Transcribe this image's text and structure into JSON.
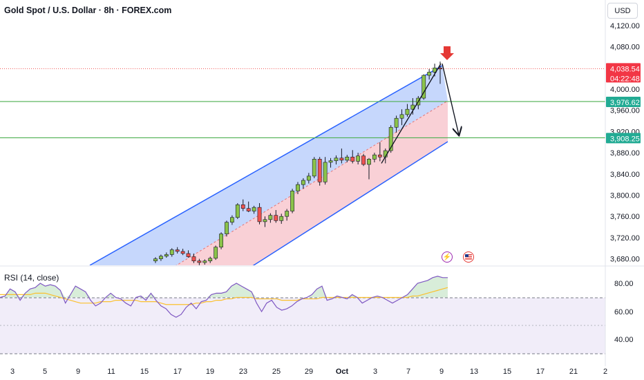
{
  "header": {
    "title": "Gold Spot / U.S. Dollar · 8h · FOREX.com",
    "currency": "USD"
  },
  "rsi": {
    "label": "RSI (14, close)",
    "ticks": [
      "80.00",
      "60.00",
      "40.00"
    ]
  },
  "price_axis": {
    "ticks": [
      "4,120.00",
      "4,080.00",
      "4,000.00",
      "3,960.00",
      "3,920.00",
      "3,880.00",
      "3,840.00",
      "3,800.00",
      "3,760.00",
      "3,720.00",
      "3,680.00"
    ]
  },
  "badges": {
    "last_price": "4,038.54",
    "countdown": "04:22:48",
    "level_upper": "3,976.62",
    "level_lower": "3,908.25"
  },
  "time_axis": {
    "labels": [
      "3",
      "5",
      "9",
      "11",
      "15",
      "17",
      "19",
      "23",
      "25",
      "29",
      "Oct",
      "3",
      "7",
      "9",
      "13",
      "15",
      "17",
      "21",
      "2"
    ]
  },
  "icons": {
    "lightning": "lightning-icon",
    "flag": "us-flag-icon"
  },
  "colors": {
    "bull_candle": "#8bc34a",
    "bear_candle": "#ef5350",
    "channel_line": "#2962ff",
    "channel_upper_fill": "#bcd0fb",
    "channel_lower_fill": "#f8c8cf",
    "level_line": "#4caf50",
    "arrow_marker": "#e53935",
    "rsi_line": "#7e57c2",
    "rsi_ma": "#fbc02d"
  },
  "chart_data": {
    "type": "candlestick",
    "title": "Gold Spot / U.S. Dollar · 8h · FOREX.com",
    "y_unit": "USD",
    "ylim": [
      3670,
      4140
    ],
    "price_levels": [
      3976.62,
      3908.25
    ],
    "last_price": 4038.54,
    "candles": [
      [
        3676,
        3683,
        3672,
        3680
      ],
      [
        3680,
        3688,
        3676,
        3685
      ],
      [
        3685,
        3692,
        3682,
        3688
      ],
      [
        3688,
        3700,
        3684,
        3697
      ],
      [
        3697,
        3702,
        3690,
        3694
      ],
      [
        3694,
        3699,
        3687,
        3690
      ],
      [
        3690,
        3696,
        3682,
        3684
      ],
      [
        3684,
        3690,
        3672,
        3676
      ],
      [
        3676,
        3680,
        3668,
        3673
      ],
      [
        3673,
        3679,
        3669,
        3676
      ],
      [
        3676,
        3684,
        3672,
        3681
      ],
      [
        3681,
        3705,
        3678,
        3702
      ],
      [
        3702,
        3730,
        3698,
        3727
      ],
      [
        3727,
        3752,
        3722,
        3749
      ],
      [
        3749,
        3762,
        3744,
        3758
      ],
      [
        3758,
        3785,
        3755,
        3782
      ],
      [
        3782,
        3792,
        3770,
        3775
      ],
      [
        3775,
        3788,
        3768,
        3770
      ],
      [
        3770,
        3780,
        3765,
        3777
      ],
      [
        3777,
        3785,
        3745,
        3750
      ],
      [
        3750,
        3760,
        3740,
        3754
      ],
      [
        3754,
        3766,
        3748,
        3762
      ],
      [
        3762,
        3772,
        3748,
        3752
      ],
      [
        3752,
        3765,
        3746,
        3760
      ],
      [
        3760,
        3774,
        3752,
        3770
      ],
      [
        3770,
        3812,
        3766,
        3808
      ],
      [
        3808,
        3825,
        3802,
        3820
      ],
      [
        3820,
        3832,
        3812,
        3828
      ],
      [
        3828,
        3842,
        3822,
        3836
      ],
      [
        3836,
        3872,
        3832,
        3868
      ],
      [
        3868,
        3872,
        3818,
        3825
      ],
      [
        3825,
        3872,
        3820,
        3862
      ],
      [
        3862,
        3870,
        3852,
        3865
      ],
      [
        3865,
        3875,
        3858,
        3870
      ],
      [
        3870,
        3888,
        3860,
        3866
      ],
      [
        3866,
        3876,
        3862,
        3872
      ],
      [
        3872,
        3885,
        3860,
        3864
      ],
      [
        3864,
        3880,
        3858,
        3874
      ],
      [
        3874,
        3878,
        3855,
        3858
      ],
      [
        3858,
        3870,
        3830,
        3868
      ],
      [
        3868,
        3880,
        3862,
        3876
      ],
      [
        3876,
        3900,
        3864,
        3872
      ],
      [
        3872,
        3888,
        3860,
        3884
      ],
      [
        3884,
        3932,
        3880,
        3928
      ],
      [
        3928,
        3950,
        3918,
        3945
      ],
      [
        3945,
        3962,
        3932,
        3952
      ],
      [
        3952,
        3972,
        3948,
        3962
      ],
      [
        3962,
        3983,
        3952,
        3970
      ],
      [
        3970,
        3987,
        3962,
        3983
      ],
      [
        3983,
        4028,
        3980,
        4026
      ],
      [
        4026,
        4038,
        4018,
        4032
      ],
      [
        4032,
        4048,
        4024,
        4040
      ],
      [
        4040,
        4052,
        4010,
        4038
      ]
    ],
    "channel": {
      "upper": [
        [
          "Sep 10",
          3678
        ],
        [
          "Oct 8",
          4050
        ]
      ],
      "middle": [
        [
          "Sep 15",
          3650
        ],
        [
          "Oct 9",
          3976
        ]
      ],
      "lower": [
        [
          "Sep 20",
          3670
        ],
        [
          "Oct 10",
          3902
        ]
      ]
    },
    "projection": {
      "rally": [
        [
          3860,
          "Oct 4"
        ],
        [
          4048,
          "Oct 8"
        ]
      ],
      "drop_target": 3910
    },
    "rsi": {
      "ylim": [
        30,
        90
      ],
      "overbought": 70,
      "oversold": 30,
      "values": [
        70,
        71,
        76,
        74,
        68,
        73,
        76,
        77,
        80,
        78,
        79,
        78,
        75,
        66,
        72,
        78,
        76,
        74,
        68,
        64,
        66,
        70,
        73,
        70,
        69,
        66,
        64,
        70,
        71,
        68,
        73,
        68,
        64,
        62,
        58,
        56,
        58,
        63,
        66,
        62,
        67,
        68,
        72,
        73,
        73,
        74,
        78,
        80,
        78,
        76,
        74,
        66,
        60,
        66,
        68,
        63,
        61,
        62,
        64,
        67,
        69,
        70,
        72,
        76,
        78,
        68,
        69,
        71,
        70,
        69,
        72,
        70,
        66,
        68,
        70,
        71,
        70,
        68,
        66,
        68,
        70,
        72,
        76,
        80,
        81,
        82,
        84,
        85,
        84,
        84
      ],
      "ma": [
        72,
        72,
        72,
        72,
        72,
        72,
        72,
        73,
        73,
        73,
        72,
        71,
        70,
        69,
        68,
        67,
        66,
        66,
        66,
        66,
        67,
        67,
        67,
        68,
        68,
        68,
        68,
        68,
        67,
        67,
        67,
        67,
        66,
        65,
        65,
        65,
        65,
        65,
        65,
        66,
        66,
        67,
        67,
        68,
        68,
        69,
        69,
        70,
        70,
        70,
        70,
        69,
        69,
        69,
        69,
        69,
        68,
        68,
        68,
        68,
        69,
        69,
        69,
        69,
        70,
        70,
        70,
        70,
        70,
        70,
        70,
        70,
        70,
        70,
        70,
        70,
        70,
        70,
        70,
        70,
        70,
        70,
        71,
        71,
        72,
        73,
        74,
        75,
        76,
        77
      ]
    }
  }
}
